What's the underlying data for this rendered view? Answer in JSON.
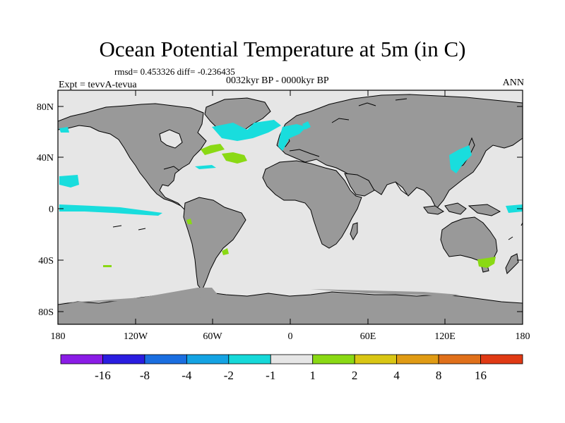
{
  "header": {
    "title": "Ocean Potential Temperature at 5m (in C)",
    "stats": "rmsd= 0.453326 diff= -0.236435",
    "period": "0032kyr BP - 0000kyr BP",
    "experiment": "Expt = tevvA-tevua",
    "season": "ANN"
  },
  "axes": {
    "lat_labels": [
      "80N",
      "40N",
      "0",
      "40S",
      "80S"
    ],
    "lon_labels": [
      "180",
      "120W",
      "60W",
      "0",
      "60E",
      "120E",
      "180"
    ]
  },
  "colorbar": {
    "labels": [
      "-16",
      "-8",
      "-4",
      "-2",
      "-1",
      "1",
      "2",
      "4",
      "8",
      "16"
    ],
    "colors": [
      "#8a1ce6",
      "#2a1de0",
      "#1a6ee0",
      "#14a3e3",
      "#16d9d9",
      "#e6e6e6",
      "#8ad914",
      "#d9c614",
      "#e09b14",
      "#e0701a",
      "#e03a14"
    ]
  },
  "colors": {
    "ocean": "#e6e6e6",
    "land": "#999999",
    "coast": "#000000",
    "anomaly_neg": "#19dddd",
    "anomaly_pos": "#8ad914"
  }
}
